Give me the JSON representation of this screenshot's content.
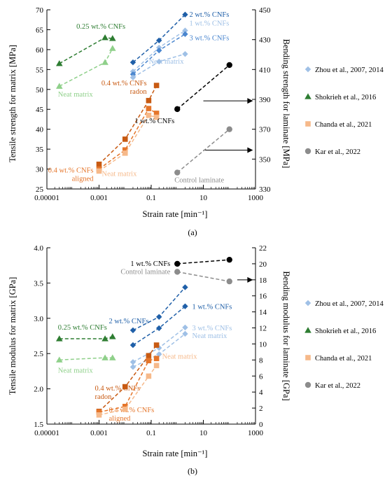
{
  "colors": {
    "zhou_dark": "#1f5fa8",
    "zhou_mid": "#4a86cf",
    "zhou_light": "#9fc0e6",
    "shok_dark": "#2e7d32",
    "shok_light": "#8fd08a",
    "chanda_dark": "#c85a12",
    "chanda_mid": "#e5752a",
    "chanda_light": "#f6b98a",
    "kar_dark": "#000000",
    "kar_light": "#8c8c8c",
    "axis": "#000000"
  },
  "legend": [
    {
      "label": "Zhou et al., 2007, 2014",
      "marker": "diamond",
      "color": "#9fc0e6"
    },
    {
      "label": "Shokrieh et al., 2016",
      "marker": "triangle",
      "color": "#2e7d32"
    },
    {
      "label": "Chanda et al., 2021",
      "marker": "square",
      "color": "#f6b98a"
    },
    {
      "label": "Kar et al., 2022",
      "marker": "circle",
      "color": "#8c8c8c"
    }
  ],
  "chart_data": [
    {
      "type": "scatter",
      "panel_label": "(a)",
      "xlabel": "Strain rate [min⁻¹]",
      "ylabel": "Tensile strength for matrix [MPa]",
      "y2label": "Bending strength for laminate [MPa]",
      "xscale": "log",
      "xlim": [
        1e-05,
        1000
      ],
      "ylim": [
        25,
        70
      ],
      "y2lim": [
        330,
        450
      ],
      "xticks": [
        1e-05,
        0.001,
        0.1,
        10,
        1000
      ],
      "xtick_labels": [
        "0.00001",
        "0.001",
        "0.1",
        "10",
        "1000"
      ],
      "yticks": [
        25,
        30,
        35,
        40,
        45,
        50,
        55,
        60,
        65,
        70
      ],
      "y2ticks": [
        330,
        350,
        370,
        390,
        410,
        430,
        450
      ],
      "series": [
        {
          "color": "#1f5fa8",
          "marker": "diamond",
          "axis": "left",
          "x": [
            0.02,
            0.2,
            2
          ],
          "y": [
            56.8,
            62.3,
            68.8
          ],
          "label": "2 wt.% CNFs"
        },
        {
          "color": "#9fc0e6",
          "marker": "diamond",
          "axis": "left",
          "x": [
            0.02,
            0.2,
            2
          ],
          "y": [
            54.5,
            60.5,
            64.8
          ],
          "label": "1 wt.% CNFs"
        },
        {
          "color": "#4a86cf",
          "marker": "diamond",
          "axis": "left",
          "x": [
            0.02,
            0.2,
            2
          ],
          "y": [
            53.8,
            59.8,
            63.9
          ],
          "label": "3 wt.% CNFs"
        },
        {
          "color": "#9fc0e6",
          "marker": "diamond",
          "axis": "left",
          "x": [
            0.02,
            0.2,
            2
          ],
          "y": [
            53.0,
            57.0,
            58.9
          ],
          "label": "Neat matrix"
        },
        {
          "color": "#2e7d32",
          "marker": "triangle",
          "axis": "left",
          "x": [
            3e-05,
            0.0017,
            0.0033
          ],
          "y": [
            56.5,
            63.0,
            62.8
          ],
          "label": "0.25 wt.% CNFs"
        },
        {
          "color": "#8fd08a",
          "marker": "triangle",
          "axis": "left",
          "x": [
            3e-05,
            0.0017,
            0.0033
          ],
          "y": [
            50.8,
            56.8,
            60.3
          ],
          "label": "Neat matrix"
        },
        {
          "color": "#c85a12",
          "marker": "square",
          "axis": "left",
          "x": [
            0.001,
            0.01,
            0.08,
            0.16
          ],
          "y": [
            31.2,
            37.5,
            47.2,
            51.0
          ],
          "label": "0.4 wt.% CNFs radon"
        },
        {
          "color": "#e5752a",
          "marker": "square",
          "axis": "left",
          "x": [
            0.001,
            0.01,
            0.08,
            0.16
          ],
          "y": [
            30.0,
            34.8,
            45.2,
            44.0
          ],
          "label": "0.4 wt.% CNFs aligned"
        },
        {
          "color": "#f6b98a",
          "marker": "square",
          "axis": "left",
          "x": [
            0.001,
            0.01,
            0.08,
            0.16
          ],
          "y": [
            29.5,
            34.0,
            43.5,
            43.0
          ],
          "label": "Neat matrix"
        },
        {
          "color": "#000000",
          "marker": "circle",
          "axis": "right",
          "x": [
            1,
            100
          ],
          "y": [
            383.5,
            413
          ],
          "label": "1 wt.% CNFs"
        },
        {
          "color": "#8c8c8c",
          "marker": "circle",
          "axis": "right",
          "x": [
            1,
            100
          ],
          "y": [
            341,
            370
          ],
          "label": "Control laminate"
        }
      ],
      "arrows": [
        {
          "from": [
            10,
            389
          ],
          "to": [
            800,
            389
          ]
        },
        {
          "from": [
            10,
            356
          ],
          "to": [
            800,
            356
          ]
        }
      ]
    },
    {
      "type": "scatter",
      "panel_label": "(b)",
      "xlabel": "Strain rate [min⁻¹]",
      "ylabel": "Tensile modulus for matrix [GPa]",
      "y2label": "Bending modulus for laminate [GPa]",
      "xscale": "log",
      "xlim": [
        1e-05,
        1000
      ],
      "ylim": [
        1.5,
        4.0
      ],
      "y2lim": [
        0,
        22
      ],
      "xticks": [
        1e-05,
        0.001,
        0.1,
        10,
        1000
      ],
      "xtick_labels": [
        "0.00001",
        "0.001",
        "0.1",
        "10",
        "1000"
      ],
      "yticks": [
        1.5,
        2.0,
        2.5,
        3.0,
        3.5,
        4.0
      ],
      "ytick_labels": [
        "1.5",
        "2.0",
        "2.5",
        "3.0",
        "3.5",
        "4.0"
      ],
      "y2ticks": [
        0,
        2,
        4,
        6,
        8,
        10,
        12,
        14,
        16,
        18,
        20,
        22
      ],
      "series": [
        {
          "color": "#1f5fa8",
          "marker": "diamond",
          "axis": "left",
          "x": [
            0.02,
            0.2,
            2
          ],
          "y": [
            2.83,
            3.02,
            3.44
          ],
          "label": "2 wt.% CNFs"
        },
        {
          "color": "#1f5fa8",
          "marker": "diamond",
          "axis": "left",
          "x": [
            0.02,
            0.2,
            2
          ],
          "y": [
            2.62,
            2.86,
            3.17
          ],
          "label": "1 wt.% CNFs"
        },
        {
          "color": "#9fc0e6",
          "marker": "diamond",
          "axis": "left",
          "x": [
            0.02,
            0.2,
            2
          ],
          "y": [
            2.38,
            2.58,
            2.87
          ],
          "label": "3 wt.% CNFs"
        },
        {
          "color": "#9fc0e6",
          "marker": "diamond",
          "axis": "left",
          "x": [
            0.02,
            0.2,
            2
          ],
          "y": [
            2.31,
            2.49,
            2.78
          ],
          "label": "Neat matrix"
        },
        {
          "color": "#2e7d32",
          "marker": "triangle",
          "axis": "left",
          "x": [
            3e-05,
            0.0017,
            0.0033
          ],
          "y": [
            2.71,
            2.71,
            2.74
          ],
          "label": "0.25 wt.% CNFs"
        },
        {
          "color": "#8fd08a",
          "marker": "triangle",
          "axis": "left",
          "x": [
            3e-05,
            0.0017,
            0.0033
          ],
          "y": [
            2.41,
            2.44,
            2.44
          ],
          "label": "Neat matrix"
        },
        {
          "color": "#c85a12",
          "marker": "square",
          "axis": "left",
          "x": [
            0.001,
            0.01,
            0.08,
            0.16
          ],
          "y": [
            1.68,
            2.03,
            2.47,
            2.62
          ],
          "label": "0.4 wt.% CNFs radon"
        },
        {
          "color": "#e5752a",
          "marker": "square",
          "axis": "left",
          "x": [
            0.001,
            0.01,
            0.08,
            0.16
          ],
          "y": [
            1.67,
            1.75,
            2.4,
            2.43
          ],
          "label": "0.4 wt.% CNFs aligned"
        },
        {
          "color": "#f6b98a",
          "marker": "square",
          "axis": "left",
          "x": [
            0.001,
            0.01,
            0.08,
            0.16
          ],
          "y": [
            1.63,
            1.71,
            2.18,
            2.33
          ],
          "label": "Neat matrix"
        },
        {
          "color": "#000000",
          "marker": "circle",
          "axis": "right",
          "x": [
            1,
            100
          ],
          "y": [
            20.0,
            20.5
          ],
          "label": "1 wt.% CNFs"
        },
        {
          "color": "#8c8c8c",
          "marker": "circle",
          "axis": "right",
          "x": [
            1,
            100
          ],
          "y": [
            19.0,
            17.8
          ],
          "label": "Control laminate"
        }
      ],
      "arrows": [
        {
          "from": [
            200,
            18.0
          ],
          "to": [
            800,
            18.0
          ]
        }
      ]
    }
  ]
}
